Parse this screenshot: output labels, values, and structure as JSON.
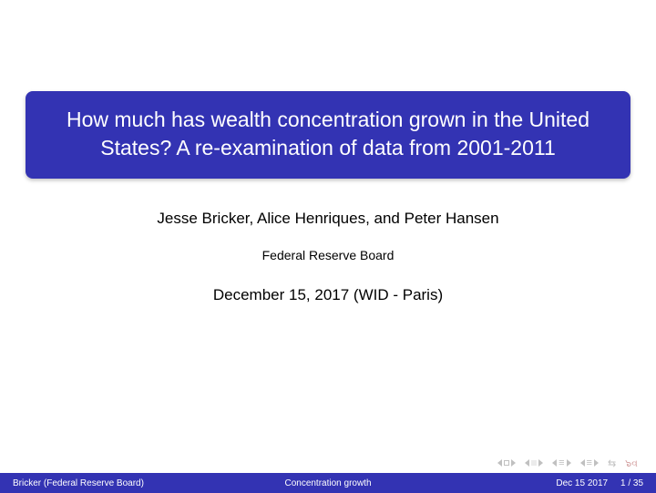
{
  "title": "How much has wealth concentration grown in the United States? A re-examination of data from 2001-2011",
  "authors": "Jesse Bricker, Alice Henriques, and Peter Hansen",
  "institution": "Federal Reserve Board",
  "date_venue": "December 15, 2017 (WID - Paris)",
  "footer": {
    "left": "Bricker (Federal Reserve Board)",
    "center": "Concentration growth",
    "right_date": "Dec 15 2017",
    "page_current": "1",
    "page_total": "35"
  },
  "colors": {
    "beamer_blue": "#3333b3",
    "background": "#ffffff",
    "text": "#000000",
    "nav_gray": "#c0c0c0",
    "nav_restore": "#d4a0a0"
  }
}
